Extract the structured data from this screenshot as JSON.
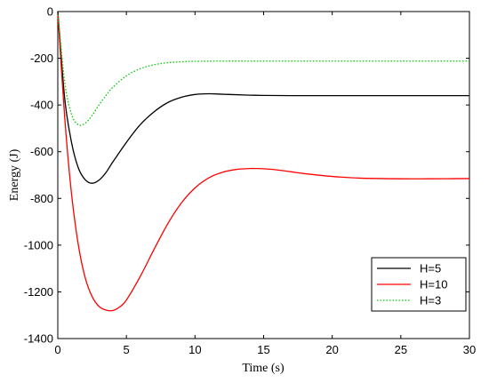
{
  "chart_data": {
    "type": "line",
    "title": "",
    "xlabel": "Time (s)",
    "ylabel": "Energy (J)",
    "xlim": [
      0,
      30
    ],
    "ylim": [
      -1400,
      0
    ],
    "xticks": [
      0,
      5,
      10,
      15,
      20,
      25,
      30
    ],
    "yticks": [
      0,
      -200,
      -400,
      -600,
      -800,
      -1000,
      -1200,
      -1400
    ],
    "grid": false,
    "legend_position": "bottom-right",
    "series": [
      {
        "name": "H=5",
        "color": "#000000",
        "style": "solid",
        "x": [
          0,
          0.5,
          1,
          1.5,
          2,
          2.5,
          3,
          3.5,
          4,
          5,
          6,
          7,
          8,
          9,
          10,
          11,
          12,
          13,
          14,
          15,
          17,
          20,
          25,
          30
        ],
        "y": [
          0,
          -370,
          -560,
          -670,
          -720,
          -735,
          -722,
          -690,
          -645,
          -560,
          -485,
          -430,
          -390,
          -367,
          -355,
          -352,
          -354,
          -356,
          -358,
          -359,
          -360,
          -360,
          -360,
          -360
        ]
      },
      {
        "name": "H=10",
        "color": "#ff0000",
        "style": "solid",
        "x": [
          0,
          0.5,
          1,
          1.5,
          2,
          2.5,
          3,
          3.5,
          4,
          4.5,
          5,
          6,
          7,
          8,
          9,
          10,
          11,
          12,
          13,
          14,
          14.5,
          15,
          16,
          17,
          18,
          20,
          22,
          25,
          27,
          30
        ],
        "y": [
          0,
          -450,
          -780,
          -1000,
          -1140,
          -1220,
          -1262,
          -1278,
          -1280,
          -1265,
          -1235,
          -1135,
          -1020,
          -910,
          -820,
          -755,
          -712,
          -688,
          -676,
          -672,
          -672,
          -673,
          -678,
          -686,
          -694,
          -706,
          -713,
          -716,
          -716,
          -715
        ]
      },
      {
        "name": "H=3",
        "color": "#00cc00",
        "style": "dotted",
        "x": [
          0,
          0.5,
          1,
          1.5,
          2,
          2.5,
          3,
          3.5,
          4,
          5,
          6,
          7,
          8,
          9,
          10,
          12,
          15,
          20,
          25,
          30
        ],
        "y": [
          0,
          -300,
          -440,
          -485,
          -478,
          -445,
          -400,
          -360,
          -325,
          -275,
          -245,
          -228,
          -219,
          -215,
          -213,
          -212,
          -212,
          -212,
          -212,
          -212
        ]
      }
    ]
  }
}
